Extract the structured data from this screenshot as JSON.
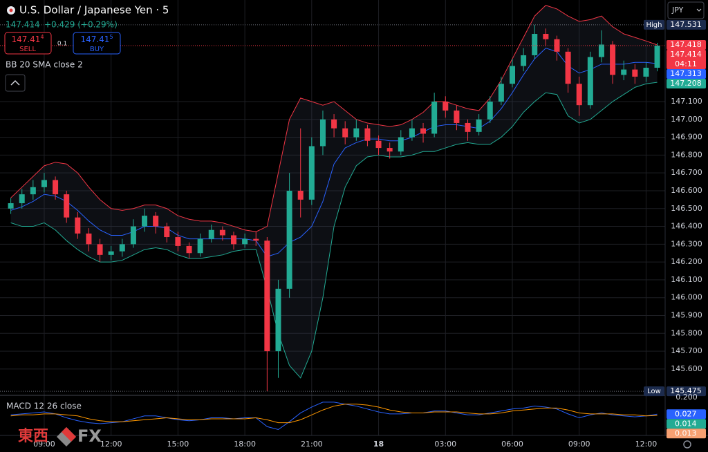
{
  "header": {
    "symbol": "U.S. Dollar / Japanese Yen · 5",
    "price": "147.414",
    "change": "+0.429 (+0.29%)",
    "sell": {
      "main": "147.41",
      "pip": "4",
      "label": "SELL"
    },
    "spread": "0.1",
    "buy": {
      "main": "147.41",
      "pip": "5",
      "label": "BUY"
    },
    "indicator": "BB 20 SMA close 2",
    "currency": "JPY"
  },
  "chart_data": [
    {
      "type": "candlestick",
      "categories": [
        null,
        null,
        null,
        "09:00",
        null,
        null,
        null,
        null,
        null,
        "12:00",
        null,
        null,
        null,
        null,
        null,
        "15:00",
        null,
        null,
        null,
        null,
        null,
        "18:00",
        null,
        null,
        null,
        null,
        null,
        "21:00",
        null,
        null,
        null,
        null,
        null,
        "18",
        null,
        null,
        null,
        null,
        null,
        "03:00",
        null,
        null,
        null,
        null,
        null,
        "06:00",
        null,
        null,
        null,
        null,
        null,
        "09:00",
        null,
        null,
        null,
        null,
        null,
        "12:00",
        null
      ],
      "open": [
        146.5,
        146.53,
        146.58,
        146.62,
        146.66,
        146.58,
        146.45,
        146.36,
        146.3,
        146.24,
        146.26,
        146.3,
        146.4,
        146.46,
        146.4,
        146.34,
        146.29,
        146.25,
        146.33,
        146.38,
        146.35,
        146.3,
        146.33,
        146.32,
        145.7,
        146.05,
        146.6,
        146.55,
        146.85,
        147.0,
        146.95,
        146.9,
        146.95,
        146.88,
        146.84,
        146.82,
        146.9,
        146.95,
        146.92,
        147.1,
        147.05,
        146.98,
        146.93,
        147.0,
        147.1,
        147.2,
        147.3,
        147.36,
        147.48,
        147.45,
        147.38,
        147.2,
        147.08,
        147.35,
        147.42,
        147.25,
        147.28,
        147.24,
        147.29
      ],
      "high": [
        146.56,
        146.61,
        146.66,
        146.7,
        146.68,
        146.6,
        146.48,
        146.39,
        146.33,
        146.29,
        146.33,
        146.44,
        146.5,
        146.48,
        146.42,
        146.37,
        146.31,
        146.36,
        146.41,
        146.4,
        146.37,
        146.36,
        146.37,
        146.34,
        146.1,
        146.7,
        146.95,
        146.9,
        147.05,
        147.03,
        146.99,
        147.0,
        146.97,
        146.91,
        146.87,
        146.94,
        147.0,
        146.98,
        147.15,
        147.13,
        147.08,
        147.0,
        147.03,
        147.13,
        147.24,
        147.34,
        147.4,
        147.531,
        147.51,
        147.47,
        147.4,
        147.24,
        147.38,
        147.5,
        147.44,
        147.33,
        147.31,
        147.32,
        147.43
      ],
      "low": [
        146.47,
        146.5,
        146.55,
        146.59,
        146.55,
        146.42,
        146.33,
        146.26,
        146.2,
        146.21,
        146.23,
        146.28,
        146.37,
        146.36,
        146.31,
        146.26,
        146.22,
        146.23,
        146.31,
        146.32,
        146.27,
        146.28,
        146.29,
        145.475,
        145.55,
        146.0,
        146.45,
        146.52,
        146.8,
        146.9,
        146.86,
        146.88,
        146.85,
        146.8,
        146.78,
        146.8,
        146.88,
        146.87,
        146.9,
        147.01,
        146.94,
        146.88,
        146.91,
        146.98,
        147.08,
        147.18,
        147.27,
        147.34,
        147.41,
        147.33,
        147.15,
        147.02,
        147.06,
        147.32,
        147.2,
        147.22,
        147.2,
        147.21,
        147.27
      ],
      "close": [
        146.53,
        146.58,
        146.62,
        146.66,
        146.58,
        146.45,
        146.36,
        146.3,
        146.24,
        146.26,
        146.3,
        146.4,
        146.46,
        146.4,
        146.34,
        146.29,
        146.25,
        146.33,
        146.38,
        146.35,
        146.3,
        146.33,
        146.32,
        145.7,
        146.05,
        146.6,
        146.55,
        146.85,
        147.0,
        146.95,
        146.9,
        146.95,
        146.88,
        146.84,
        146.82,
        146.9,
        146.95,
        146.92,
        147.1,
        147.05,
        146.98,
        146.93,
        147.0,
        147.1,
        147.2,
        147.3,
        147.36,
        147.48,
        147.45,
        147.38,
        147.2,
        147.08,
        147.35,
        147.42,
        147.25,
        147.28,
        147.24,
        147.29,
        147.414
      ],
      "up_color": "#22ab94",
      "down_color": "#f23645",
      "bands": {
        "upper": [
          146.56,
          146.62,
          146.68,
          146.74,
          146.76,
          146.75,
          146.7,
          146.62,
          146.55,
          146.5,
          146.49,
          146.5,
          146.52,
          146.52,
          146.5,
          146.46,
          146.44,
          146.43,
          146.43,
          146.42,
          146.4,
          146.38,
          146.37,
          146.4,
          146.7,
          147.0,
          147.12,
          147.1,
          147.08,
          147.1,
          147.05,
          147.0,
          146.98,
          146.97,
          146.96,
          146.97,
          147.0,
          147.04,
          147.1,
          147.1,
          147.08,
          147.06,
          147.05,
          147.12,
          147.22,
          147.34,
          147.46,
          147.58,
          147.64,
          147.62,
          147.58,
          147.55,
          147.56,
          147.58,
          147.52,
          147.48,
          147.46,
          147.44,
          147.418
        ],
        "middle": [
          146.49,
          146.51,
          146.54,
          146.58,
          146.57,
          146.54,
          146.49,
          146.43,
          146.38,
          146.35,
          146.35,
          146.37,
          146.4,
          146.4,
          146.39,
          146.35,
          146.33,
          146.33,
          146.33,
          146.33,
          146.33,
          146.33,
          146.32,
          146.23,
          146.25,
          146.31,
          146.34,
          146.4,
          146.54,
          146.75,
          146.84,
          146.87,
          146.89,
          146.89,
          146.88,
          146.88,
          146.9,
          146.93,
          146.96,
          146.97,
          146.97,
          146.96,
          146.95,
          146.99,
          147.06,
          147.15,
          147.25,
          147.34,
          147.4,
          147.38,
          147.3,
          147.26,
          147.28,
          147.31,
          147.31,
          147.31,
          147.32,
          147.32,
          147.313
        ],
        "lower": [
          146.42,
          146.4,
          146.4,
          146.42,
          146.38,
          146.32,
          146.27,
          146.23,
          146.2,
          146.2,
          146.21,
          146.24,
          146.27,
          146.28,
          146.27,
          146.24,
          146.22,
          146.22,
          146.23,
          146.24,
          146.26,
          146.27,
          146.27,
          146.05,
          145.8,
          145.62,
          145.55,
          145.7,
          146.0,
          146.4,
          146.62,
          146.74,
          146.79,
          146.8,
          146.79,
          146.79,
          146.8,
          146.82,
          146.82,
          146.84,
          146.86,
          146.87,
          146.86,
          146.86,
          146.9,
          146.96,
          147.04,
          147.1,
          147.15,
          147.14,
          147.02,
          146.98,
          147.0,
          147.05,
          147.1,
          147.14,
          147.18,
          147.2,
          147.208
        ],
        "upper_color": "#f23645",
        "middle_color": "#2962ff",
        "lower_color": "#22ab94"
      },
      "ylim": [
        145.46,
        147.67
      ],
      "yticks": [
        {
          "value": 145.6,
          "label": "145.600"
        },
        {
          "value": 145.7,
          "label": "145.700"
        },
        {
          "value": 145.8,
          "label": "145.800"
        },
        {
          "value": 145.9,
          "label": "145.900"
        },
        {
          "value": 146.0,
          "label": "146.000"
        },
        {
          "value": 146.1,
          "label": "146.100"
        },
        {
          "value": 146.2,
          "label": "146.200"
        },
        {
          "value": 146.3,
          "label": "146.300"
        },
        {
          "value": 146.4,
          "label": "146.400"
        },
        {
          "value": 146.5,
          "label": "146.500"
        },
        {
          "value": 146.6,
          "label": "146.600"
        },
        {
          "value": 146.7,
          "label": "146.700"
        },
        {
          "value": 146.8,
          "label": "146.800"
        },
        {
          "value": 146.9,
          "label": "146.900"
        },
        {
          "value": 147.0,
          "label": "147.000"
        },
        {
          "value": 147.1,
          "label": "147.100"
        }
      ],
      "grid": true,
      "price_tags": [
        {
          "value": 147.531,
          "note": "High",
          "color": "#1c2b4d",
          "guide": true
        },
        {
          "value": 147.418,
          "color": "#f23645"
        },
        {
          "value": 147.414,
          "countdown": "04:11",
          "color": "#f23645",
          "guide": true
        },
        {
          "value": 147.313,
          "color": "#2962ff"
        },
        {
          "value": 147.208,
          "color": "#22ab94"
        },
        {
          "value": 145.475,
          "note": "Low",
          "color": "#1c2b4d",
          "guide": true
        }
      ]
    },
    {
      "type": "line",
      "title": "MACD 12 26 close",
      "lines": [
        {
          "color": "#2962ff",
          "values": [
            0.02,
            0.03,
            0.04,
            0.05,
            0.03,
            -0.01,
            -0.04,
            -0.06,
            -0.07,
            -0.06,
            -0.05,
            -0.02,
            0.01,
            0.01,
            -0.01,
            -0.03,
            -0.04,
            -0.03,
            -0.01,
            -0.01,
            -0.02,
            -0.01,
            -0.01,
            -0.1,
            -0.13,
            -0.05,
            0.04,
            0.1,
            0.15,
            0.15,
            0.13,
            0.11,
            0.08,
            0.05,
            0.03,
            0.03,
            0.04,
            0.04,
            0.06,
            0.06,
            0.04,
            0.02,
            0.02,
            0.04,
            0.06,
            0.08,
            0.09,
            0.11,
            0.1,
            0.08,
            0.03,
            -0.01,
            0.02,
            0.04,
            0.02,
            0.01,
            0.0,
            0.01,
            0.027
          ]
        },
        {
          "color": "#ff9800",
          "values": [
            0.01,
            0.02,
            0.02,
            0.03,
            0.03,
            0.02,
            0.01,
            -0.02,
            -0.04,
            -0.05,
            -0.05,
            -0.04,
            -0.03,
            -0.02,
            -0.01,
            -0.02,
            -0.03,
            -0.03,
            -0.02,
            -0.02,
            -0.02,
            -0.02,
            -0.01,
            -0.03,
            -0.06,
            -0.06,
            -0.03,
            0.02,
            0.07,
            0.11,
            0.13,
            0.13,
            0.12,
            0.1,
            0.07,
            0.05,
            0.04,
            0.04,
            0.05,
            0.05,
            0.05,
            0.04,
            0.03,
            0.03,
            0.04,
            0.06,
            0.07,
            0.08,
            0.09,
            0.09,
            0.07,
            0.04,
            0.03,
            0.03,
            0.03,
            0.02,
            0.02,
            0.01,
            0.014
          ]
        }
      ],
      "ylim": [
        -0.19,
        0.22
      ],
      "yticks": [
        {
          "value": 0.2,
          "label": "0.200"
        }
      ],
      "value_tags": [
        {
          "value": 0.027,
          "color": "#2962ff"
        },
        {
          "value": 0.014,
          "color": "#22ab94"
        },
        {
          "value": 0.013,
          "color": "#f7a072"
        }
      ]
    }
  ],
  "logo": {
    "cjk": "東西",
    "latin": "FX"
  }
}
